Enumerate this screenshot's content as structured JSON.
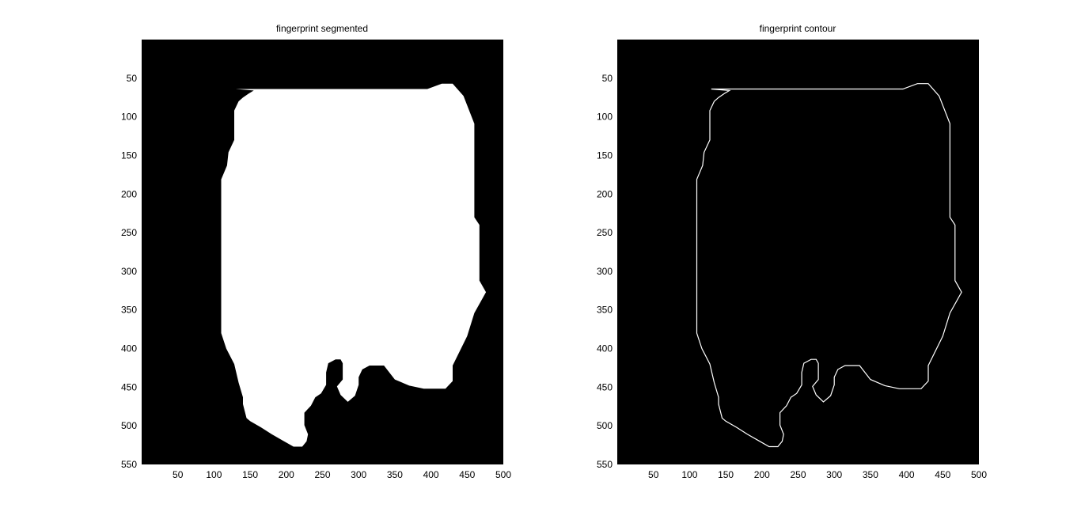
{
  "figure": {
    "background": "#ffffff",
    "image_background": "#000000",
    "foreground": "#ffffff"
  },
  "panels": [
    {
      "title": "fingerprint segmented",
      "render": "filled",
      "xticks": [
        "50",
        "100",
        "150",
        "200",
        "250",
        "300",
        "350",
        "400",
        "450",
        "500"
      ],
      "yticks": [
        "50",
        "100",
        "150",
        "200",
        "250",
        "300",
        "350",
        "400",
        "450",
        "500",
        "550"
      ]
    },
    {
      "title": "fingerprint contour",
      "render": "outline",
      "xticks": [
        "50",
        "100",
        "150",
        "200",
        "250",
        "300",
        "350",
        "400",
        "450",
        "500"
      ],
      "yticks": [
        "50",
        "100",
        "150",
        "200",
        "250",
        "300",
        "350",
        "400",
        "450",
        "500",
        "550"
      ]
    }
  ],
  "chart_data": {
    "type": "image",
    "xlim": [
      0,
      500
    ],
    "ylim": [
      0,
      550
    ],
    "y_direction": "down",
    "region_outline": [
      [
        130,
        64
      ],
      [
        395,
        64
      ],
      [
        415,
        57
      ],
      [
        430,
        57
      ],
      [
        445,
        73
      ],
      [
        460,
        109
      ],
      [
        460,
        230
      ],
      [
        467,
        240
      ],
      [
        467,
        312
      ],
      [
        476,
        327
      ],
      [
        460,
        354
      ],
      [
        450,
        384
      ],
      [
        430,
        422
      ],
      [
        430,
        442
      ],
      [
        420,
        452
      ],
      [
        410,
        452
      ],
      [
        390,
        452
      ],
      [
        370,
        448
      ],
      [
        350,
        440
      ],
      [
        335,
        422
      ],
      [
        315,
        422
      ],
      [
        305,
        427
      ],
      [
        300,
        437
      ],
      [
        300,
        447
      ],
      [
        295,
        461
      ],
      [
        285,
        469
      ],
      [
        275,
        460
      ],
      [
        270,
        449
      ],
      [
        278,
        440
      ],
      [
        278,
        419
      ],
      [
        275,
        414
      ],
      [
        268,
        414
      ],
      [
        258,
        419
      ],
      [
        255,
        431
      ],
      [
        255,
        447
      ],
      [
        248,
        458
      ],
      [
        240,
        463
      ],
      [
        234,
        474
      ],
      [
        225,
        483
      ],
      [
        225,
        499
      ],
      [
        230,
        511
      ],
      [
        228,
        520
      ],
      [
        222,
        527
      ],
      [
        210,
        527
      ],
      [
        195,
        519
      ],
      [
        180,
        511
      ],
      [
        165,
        502
      ],
      [
        150,
        494
      ],
      [
        145,
        490
      ],
      [
        140,
        472
      ],
      [
        140,
        463
      ],
      [
        134,
        444
      ],
      [
        128,
        420
      ],
      [
        117,
        400
      ],
      [
        110,
        380
      ],
      [
        110,
        181
      ],
      [
        118,
        163
      ],
      [
        120,
        146
      ],
      [
        128,
        130
      ],
      [
        128,
        92
      ],
      [
        134,
        80
      ],
      [
        140,
        75
      ],
      [
        148,
        70
      ],
      [
        155,
        66
      ]
    ]
  }
}
